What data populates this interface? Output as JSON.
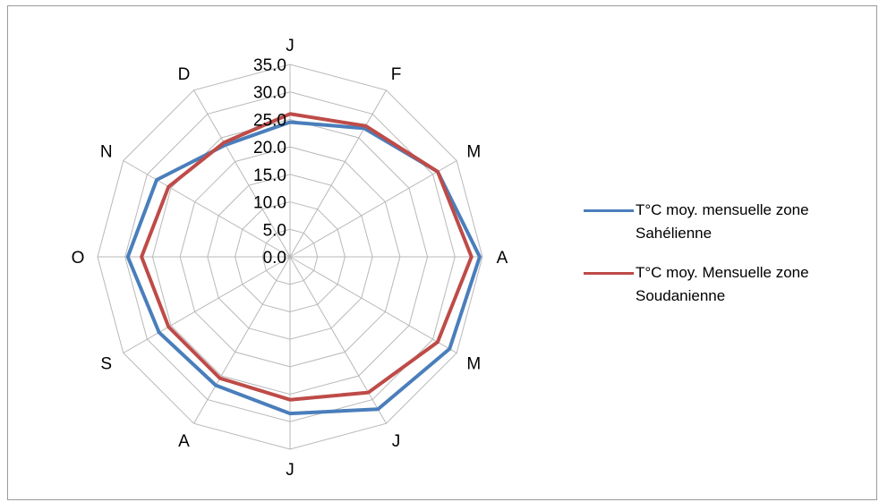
{
  "chart_data": {
    "type": "radar",
    "categories": [
      "J",
      "F",
      "M",
      "A",
      "M",
      "J",
      "J",
      "A",
      "S",
      "O",
      "N",
      "D"
    ],
    "rlim": [
      0,
      35
    ],
    "ticks": [
      "0.0",
      "5.0",
      "10.0",
      "15.0",
      "20.0",
      "25.0",
      "30.0",
      "35.0"
    ],
    "tick_values": [
      0,
      5,
      10,
      15,
      20,
      25,
      30,
      35
    ],
    "grid": true,
    "legend_position": "right",
    "series": [
      {
        "name": "T°C moy. mensuelle zone Sahélienne",
        "color": "#4a7ebb",
        "values": [
          24.5,
          27.0,
          31.0,
          34.5,
          33.5,
          32.0,
          28.5,
          27.0,
          27.5,
          29.5,
          28.0,
          23.5
        ]
      },
      {
        "name": "T°C moy. Mensuelle zone Soudanienne",
        "color": "#be4b48",
        "values": [
          26.0,
          27.5,
          31.0,
          33.0,
          31.0,
          28.5,
          26.0,
          25.5,
          25.5,
          27.0,
          25.5,
          24.0
        ]
      }
    ]
  }
}
